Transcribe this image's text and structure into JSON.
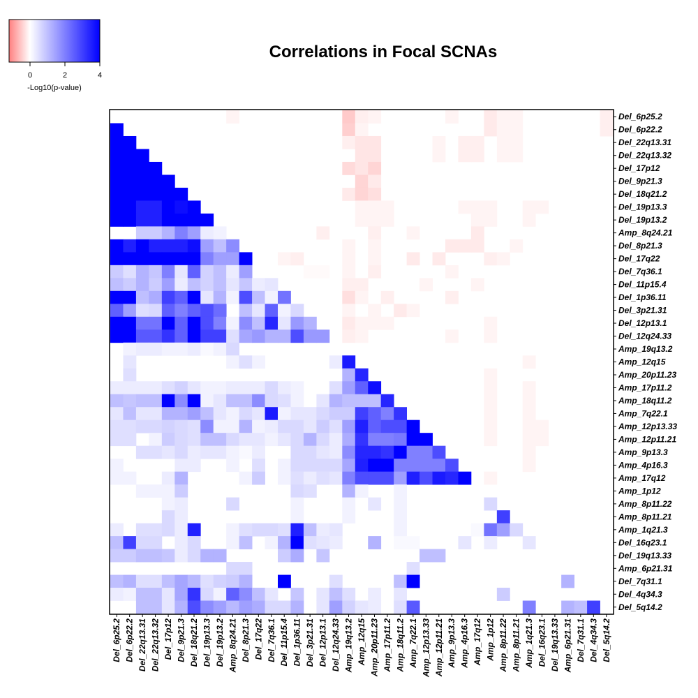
{
  "chart_data": {
    "type": "heatmap",
    "title": "Correlations in Focal SCNAs",
    "colorbar": {
      "label": "-Log10(p-value)",
      "ticks": [
        0,
        2,
        4
      ],
      "range": [
        -1.2,
        4
      ],
      "colors": {
        "negative": "#ff8080",
        "zero": "#ffffff",
        "positive": "#0000ff"
      }
    },
    "labels": [
      "Del_6p25.2",
      "Del_6p22.2",
      "Del_22q13.31",
      "Del_22q13.32",
      "Del_17p12",
      "Del_9p21.3",
      "Del_18q21.2",
      "Del_19p13.3",
      "Del_19p13.2",
      "Amp_8q24.21",
      "Del_8p21.3",
      "Del_17q22",
      "Del_7q36.1",
      "Del_11p15.4",
      "Del_1p36.11",
      "Del_3p21.31",
      "Del_12p13.1",
      "Del_12q24.33",
      "Amp_19q13.2",
      "Amp_12q15",
      "Amp_20p11.23",
      "Amp_17p11.2",
      "Amp_18q11.2",
      "Amp_7q22.1",
      "Amp_12p13.33",
      "Amp_12p11.21",
      "Amp_9p13.3",
      "Amp_4p16.3",
      "Amp_17q12",
      "Amp_1p12",
      "Amp_8p11.22",
      "Amp_8p11.21",
      "Amp_1q21.3",
      "Del_16q23.1",
      "Del_19q13.33",
      "Amp_6p21.31",
      "Del_7q31.1",
      "Del_4q34.3",
      "Del_5q14.2"
    ],
    "x_labels": [
      "Del_6p25.2",
      "Del_6p22.2",
      "Del_22q13.31",
      "Del_22q13.32",
      "Del_17p12",
      "Del_9p21.3",
      "Del_18q21.2",
      "Del_19p13.3",
      "Del_19p13.2",
      "Amp_8q24.21",
      "Del_8p21.3",
      "Del_17q22",
      "Del_7q36.1",
      "Del_11p15.4",
      "Del_1p36.11",
      "Del_3p21.31",
      "Del_12p13.1",
      "Del_12q24.33",
      "Amp_19q13.2",
      "Amp_12q15",
      "Amp_20p11.23",
      "Amp_17p11.2",
      "Amp_18q11.2",
      "Amp_7q22.1",
      "Amp_12p13.33",
      "Amp_12p11.21",
      "Amp_9p13.3",
      "Amp_4p16.3",
      "Amp_17q12",
      "Amp_1p12",
      "Amp_8p11.22",
      "Amp_8p11.21",
      "Amp_1q21.3",
      "Del_16q23.1",
      "Del_19q13.33",
      "Amp_6p21.31",
      "Del_7q31.1",
      "Del_4q34.3",
      "Del_5q14.2"
    ],
    "lower_triangle_positive": [
      [],
      [
        4
      ],
      [
        4,
        4
      ],
      [
        4,
        4,
        4
      ],
      [
        4,
        4,
        4,
        4
      ],
      [
        4,
        4,
        4,
        4,
        4
      ],
      [
        4,
        4,
        4,
        4,
        4,
        4
      ],
      [
        4,
        4,
        3.5,
        3.5,
        4,
        3.8,
        4
      ],
      [
        4,
        4,
        3.5,
        3.5,
        4,
        4,
        4,
        4
      ],
      [
        0,
        0,
        0.8,
        0.8,
        1.2,
        2,
        1.5,
        0.3,
        0.2
      ],
      [
        4,
        3.5,
        4,
        3.5,
        3.5,
        3.5,
        3.8,
        1.5,
        1,
        1.8
      ],
      [
        4,
        4,
        4,
        4,
        4,
        4,
        4,
        2,
        1.5,
        1.5,
        4
      ],
      [
        0.8,
        0.5,
        1.2,
        0.9,
        2,
        0.4,
        2.5,
        0.7,
        1,
        0.3,
        1.5,
        0
      ],
      [
        1,
        0.8,
        1.2,
        0.8,
        1.5,
        0.3,
        1,
        0.7,
        1,
        0.4,
        0.9,
        0.3,
        0.4
      ],
      [
        4,
        4,
        1,
        1.3,
        3,
        2.5,
        4,
        0.4,
        1.2,
        0.2,
        2.8,
        1,
        0.2,
        2.2
      ],
      [
        2.5,
        1.5,
        0.5,
        0.6,
        2.5,
        2,
        2.5,
        2.8,
        2.3,
        0,
        1,
        0.4,
        2.5,
        0.2,
        0.6
      ],
      [
        4,
        4,
        2.2,
        2.2,
        4,
        2.5,
        4,
        2.8,
        2,
        0.2,
        1.8,
        1,
        3.4,
        0.4,
        1.6,
        1.2
      ],
      [
        4,
        4,
        2.6,
        2.6,
        3.2,
        2.5,
        4,
        3,
        3,
        0.5,
        1.4,
        1.6,
        1.2,
        1.2,
        2.8,
        1.6,
        1.6
      ],
      [
        0,
        0.2,
        0.3,
        0.3,
        0.2,
        0.2,
        0.3,
        0.1,
        0.2,
        0.6,
        0,
        0,
        0,
        0,
        0,
        0,
        0,
        0
      ],
      [
        0,
        0.4,
        0,
        0,
        0,
        0,
        0,
        0,
        0,
        0.2,
        0.5,
        0.2,
        0,
        0,
        0,
        0,
        0,
        0.3,
        3.6
      ],
      [
        0,
        0.5,
        0,
        0,
        0,
        0,
        0,
        0,
        0,
        0,
        0,
        0,
        0,
        0,
        0,
        0,
        0,
        0,
        1.2,
        3.4
      ],
      [
        0.3,
        0.3,
        0.3,
        0.3,
        0.5,
        0.7,
        0.4,
        0.2,
        0.2,
        0.3,
        0.3,
        0.3,
        0.6,
        0.3,
        0.2,
        0,
        0,
        0.5,
        1.5,
        2.5,
        3.8
      ],
      [
        1,
        0.9,
        1,
        1,
        4,
        1.8,
        4,
        0.2,
        0.4,
        1,
        1,
        1.8,
        0.6,
        0.5,
        0.2,
        0,
        0.4,
        1.2,
        1,
        1,
        1,
        3.4
      ],
      [
        0.4,
        1,
        0.4,
        0.4,
        1.2,
        1.2,
        1.5,
        1,
        0.4,
        0.2,
        0.6,
        0.4,
        3.6,
        0.2,
        0.4,
        0.4,
        0.6,
        0.8,
        0.8,
        3,
        2.5,
        2,
        3.2
      ],
      [
        0.5,
        0.5,
        0.6,
        0.6,
        0.7,
        0.6,
        0.5,
        1.8,
        0.2,
        0.2,
        1.2,
        0.2,
        0.3,
        0.6,
        0.6,
        0.4,
        0.8,
        0.5,
        1.5,
        3.5,
        2.5,
        2.8,
        2.8,
        4
      ],
      [
        0.5,
        0.5,
        0,
        0.2,
        0.8,
        0.6,
        0.5,
        1,
        1,
        0.6,
        0.4,
        0.4,
        0.2,
        0.4,
        0.6,
        1.2,
        0.6,
        0.3,
        1.3,
        3.2,
        2,
        2,
        2.1,
        4,
        4
      ],
      [
        0,
        0,
        0.5,
        0.5,
        0.4,
        0.6,
        0.3,
        0.4,
        0.4,
        0.2,
        0.1,
        0.3,
        0,
        0,
        0.6,
        0.6,
        0.4,
        0.3,
        1.8,
        3.4,
        3.4,
        3.2,
        4,
        2,
        2,
        2.8
      ],
      [
        0.2,
        0,
        0,
        0,
        0,
        0.3,
        0.3,
        0,
        0,
        0.2,
        0,
        0.5,
        0,
        0.2,
        0.6,
        0.6,
        0.6,
        0.6,
        1.4,
        3.5,
        4,
        4,
        2,
        2,
        2,
        2,
        2.8
      ],
      [
        0.2,
        0.2,
        0,
        0,
        0.3,
        1.2,
        0,
        0,
        0,
        0,
        0.2,
        0.8,
        0,
        0.2,
        0.5,
        0.3,
        0.5,
        0.4,
        2,
        2.8,
        2.8,
        2.8,
        1.5,
        3.5,
        2.8,
        3.6,
        3.4,
        4
      ],
      [
        0,
        0,
        0.2,
        0.2,
        0.2,
        0.8,
        0,
        0,
        0,
        0,
        0,
        0,
        0,
        0,
        0.6,
        0.5,
        0,
        0,
        1.2,
        0.2,
        0,
        0,
        0.2,
        0,
        0,
        0,
        0,
        0,
        0
      ],
      [
        0,
        0,
        0,
        0,
        0.2,
        0.3,
        0,
        0,
        0,
        0.6,
        0,
        0,
        0,
        0,
        0.2,
        0,
        0,
        0,
        0.2,
        0,
        0.4,
        0,
        0.2,
        0,
        0,
        0,
        0,
        0,
        0,
        0.6
      ],
      [
        0,
        0,
        0,
        0,
        0.6,
        0.3,
        0,
        0,
        0,
        0,
        0,
        0,
        0,
        0,
        0.2,
        0,
        0,
        0,
        0.2,
        0,
        0,
        0,
        0.2,
        0,
        0,
        0,
        0,
        0,
        0,
        0,
        3
      ],
      [
        0.3,
        0,
        0.5,
        0.5,
        0.6,
        0.3,
        3.5,
        0,
        0,
        0.2,
        0.5,
        0.6,
        0.6,
        0.5,
        3.5,
        1,
        0.3,
        0.4,
        0,
        0,
        0,
        0,
        0.2,
        0,
        0,
        0,
        0,
        0,
        0.1,
        2.2,
        1.5,
        0.6
      ],
      [
        1,
        3,
        0.6,
        0.6,
        0,
        0.3,
        0.6,
        0,
        0,
        0.2,
        1,
        0,
        0.2,
        1.2,
        4,
        0.5,
        0.4,
        0.3,
        0,
        0,
        1.2,
        0,
        0.1,
        0.1,
        0,
        0,
        0,
        0.4,
        0,
        0.3,
        0,
        0,
        0.4
      ],
      [
        0.8,
        0.8,
        1,
        1,
        0.9,
        0.3,
        0.6,
        1.2,
        1.2,
        0,
        0,
        0,
        0,
        0.8,
        1.3,
        0,
        0.9,
        0,
        0,
        0,
        0,
        0,
        0,
        0,
        1,
        1,
        0,
        0,
        0,
        0,
        0,
        0,
        0,
        0
      ],
      [
        0,
        0,
        0,
        0,
        0,
        0,
        0,
        0,
        0,
        0.6,
        0.6,
        0,
        0,
        0,
        0,
        0,
        0,
        0,
        0,
        0,
        0,
        0,
        0,
        0.5,
        0,
        0,
        0,
        0,
        0,
        0,
        0,
        0,
        0,
        0,
        0
      ],
      [
        1,
        1.2,
        0.5,
        0.5,
        1,
        1.4,
        1.1,
        0.5,
        0.7,
        0.8,
        1.2,
        0,
        0,
        4,
        0,
        0,
        0,
        0.5,
        0,
        0,
        0,
        0,
        1,
        4,
        0,
        0,
        0,
        0,
        0,
        0,
        0,
        0,
        0,
        0,
        0,
        1.2
      ],
      [
        0.3,
        0.2,
        1,
        1,
        0.4,
        1.4,
        3.2,
        0.6,
        0.2,
        2.5,
        1.8,
        1,
        0.4,
        0,
        0.9,
        0,
        0.4,
        1,
        0.5,
        0,
        0.3,
        0,
        0.4,
        0,
        0,
        0,
        0,
        0,
        0,
        0,
        0.8,
        0,
        0,
        0,
        0,
        0,
        0
      ],
      [
        0,
        0,
        1,
        1,
        0.4,
        1.2,
        2.8,
        1.8,
        1.5,
        1.1,
        1.5,
        1.3,
        0.6,
        0.6,
        1.2,
        0,
        0.4,
        1.5,
        0.7,
        0.4,
        0.3,
        0,
        0.5,
        2.6,
        0,
        0,
        0,
        0,
        0,
        0,
        0,
        0,
        2,
        0,
        0,
        1.2,
        1,
        3
      ]
    ],
    "upper_triangle_negative": [
      {
        "row": 0,
        "col": 9,
        "v": -0.1
      },
      {
        "row": 0,
        "col": 18,
        "v": -0.5
      },
      {
        "row": 0,
        "col": 19,
        "v": -0.15
      },
      {
        "row": 0,
        "col": 20,
        "v": -0.1
      },
      {
        "row": 0,
        "col": 26,
        "v": -0.1
      },
      {
        "row": 0,
        "col": 29,
        "v": -0.2
      },
      {
        "row": 0,
        "col": 30,
        "v": -0.1
      },
      {
        "row": 0,
        "col": 31,
        "v": -0.1
      },
      {
        "row": 0,
        "col": 38,
        "v": -0.15
      },
      {
        "row": 1,
        "col": 18,
        "v": -0.45
      },
      {
        "row": 1,
        "col": 19,
        "v": -0.1
      },
      {
        "row": 1,
        "col": 29,
        "v": -0.2
      },
      {
        "row": 1,
        "col": 30,
        "v": -0.1
      },
      {
        "row": 1,
        "col": 31,
        "v": -0.1
      },
      {
        "row": 1,
        "col": 38,
        "v": -0.15
      },
      {
        "row": 2,
        "col": 18,
        "v": -0.15
      },
      {
        "row": 2,
        "col": 19,
        "v": -0.25
      },
      {
        "row": 2,
        "col": 20,
        "v": -0.25
      },
      {
        "row": 2,
        "col": 25,
        "v": -0.1
      },
      {
        "row": 2,
        "col": 27,
        "v": -0.15
      },
      {
        "row": 2,
        "col": 28,
        "v": -0.15
      },
      {
        "row": 2,
        "col": 30,
        "v": -0.1
      },
      {
        "row": 2,
        "col": 31,
        "v": -0.1
      },
      {
        "row": 3,
        "col": 19,
        "v": -0.25
      },
      {
        "row": 3,
        "col": 20,
        "v": -0.25
      },
      {
        "row": 3,
        "col": 25,
        "v": -0.1
      },
      {
        "row": 3,
        "col": 27,
        "v": -0.15
      },
      {
        "row": 3,
        "col": 28,
        "v": -0.15
      },
      {
        "row": 3,
        "col": 30,
        "v": -0.1
      },
      {
        "row": 3,
        "col": 31,
        "v": -0.1
      },
      {
        "row": 4,
        "col": 18,
        "v": -0.35
      },
      {
        "row": 4,
        "col": 19,
        "v": -0.25
      },
      {
        "row": 4,
        "col": 20,
        "v": -0.4
      },
      {
        "row": 5,
        "col": 19,
        "v": -0.4
      },
      {
        "row": 5,
        "col": 20,
        "v": -0.2
      },
      {
        "row": 6,
        "col": 18,
        "v": -0.2
      },
      {
        "row": 6,
        "col": 19,
        "v": -0.4
      },
      {
        "row": 6,
        "col": 20,
        "v": -0.3
      },
      {
        "row": 7,
        "col": 19,
        "v": -0.1
      },
      {
        "row": 7,
        "col": 20,
        "v": -0.1
      },
      {
        "row": 7,
        "col": 21,
        "v": -0.1
      },
      {
        "row": 7,
        "col": 27,
        "v": -0.1
      },
      {
        "row": 7,
        "col": 28,
        "v": -0.1
      },
      {
        "row": 7,
        "col": 29,
        "v": -0.1
      },
      {
        "row": 7,
        "col": 32,
        "v": -0.1
      },
      {
        "row": 7,
        "col": 33,
        "v": -0.1
      },
      {
        "row": 8,
        "col": 19,
        "v": -0.1
      },
      {
        "row": 8,
        "col": 20,
        "v": -0.1
      },
      {
        "row": 8,
        "col": 21,
        "v": -0.1
      },
      {
        "row": 8,
        "col": 28,
        "v": -0.1
      },
      {
        "row": 8,
        "col": 29,
        "v": -0.1
      },
      {
        "row": 8,
        "col": 32,
        "v": -0.1
      },
      {
        "row": 9,
        "col": 16,
        "v": -0.15
      },
      {
        "row": 9,
        "col": 20,
        "v": -0.15
      },
      {
        "row": 9,
        "col": 23,
        "v": -0.1
      },
      {
        "row": 9,
        "col": 28,
        "v": -0.2
      },
      {
        "row": 10,
        "col": 18,
        "v": -0.1
      },
      {
        "row": 10,
        "col": 20,
        "v": -0.1
      },
      {
        "row": 10,
        "col": 26,
        "v": -0.2
      },
      {
        "row": 10,
        "col": 27,
        "v": -0.2
      },
      {
        "row": 10,
        "col": 28,
        "v": -0.2
      },
      {
        "row": 10,
        "col": 31,
        "v": -0.1
      },
      {
        "row": 11,
        "col": 13,
        "v": -0.1
      },
      {
        "row": 11,
        "col": 14,
        "v": -0.15
      },
      {
        "row": 11,
        "col": 18,
        "v": -0.1
      },
      {
        "row": 11,
        "col": 20,
        "v": -0.1
      },
      {
        "row": 11,
        "col": 23,
        "v": -0.2
      },
      {
        "row": 11,
        "col": 25,
        "v": -0.2
      },
      {
        "row": 11,
        "col": 29,
        "v": -0.15
      },
      {
        "row": 11,
        "col": 30,
        "v": -0.1
      },
      {
        "row": 12,
        "col": 15,
        "v": -0.05
      },
      {
        "row": 12,
        "col": 16,
        "v": -0.05
      },
      {
        "row": 12,
        "col": 18,
        "v": -0.1
      },
      {
        "row": 12,
        "col": 20,
        "v": -0.15
      },
      {
        "row": 12,
        "col": 26,
        "v": -0.1
      },
      {
        "row": 13,
        "col": 18,
        "v": -0.15
      },
      {
        "row": 13,
        "col": 19,
        "v": -0.15
      },
      {
        "row": 13,
        "col": 24,
        "v": -0.1
      },
      {
        "row": 13,
        "col": 28,
        "v": -0.1
      },
      {
        "row": 14,
        "col": 18,
        "v": -0.3
      },
      {
        "row": 14,
        "col": 19,
        "v": -0.1
      },
      {
        "row": 14,
        "col": 21,
        "v": -0.15
      },
      {
        "row": 14,
        "col": 26,
        "v": -0.15
      },
      {
        "row": 15,
        "col": 18,
        "v": -0.1
      },
      {
        "row": 15,
        "col": 20,
        "v": -0.1
      },
      {
        "row": 15,
        "col": 22,
        "v": -0.2
      },
      {
        "row": 15,
        "col": 23,
        "v": -0.1
      },
      {
        "row": 16,
        "col": 18,
        "v": -0.2
      },
      {
        "row": 16,
        "col": 19,
        "v": -0.1
      },
      {
        "row": 16,
        "col": 20,
        "v": -0.1
      },
      {
        "row": 16,
        "col": 21,
        "v": -0.1
      },
      {
        "row": 16,
        "col": 29,
        "v": -0.1
      },
      {
        "row": 17,
        "col": 18,
        "v": -0.15
      },
      {
        "row": 17,
        "col": 19,
        "v": -0.1
      },
      {
        "row": 17,
        "col": 26,
        "v": -0.1
      },
      {
        "row": 17,
        "col": 29,
        "v": -0.1
      },
      {
        "row": 19,
        "col": 32,
        "v": -0.1
      },
      {
        "row": 20,
        "col": 29,
        "v": -0.1
      },
      {
        "row": 21,
        "col": 29,
        "v": -0.1
      },
      {
        "row": 21,
        "col": 32,
        "v": -0.1
      },
      {
        "row": 22,
        "col": 29,
        "v": -0.1
      },
      {
        "row": 22,
        "col": 32,
        "v": -0.1
      },
      {
        "row": 23,
        "col": 29,
        "v": -0.1
      },
      {
        "row": 23,
        "col": 32,
        "v": -0.1
      },
      {
        "row": 24,
        "col": 29,
        "v": -0.1
      },
      {
        "row": 24,
        "col": 32,
        "v": -0.1
      },
      {
        "row": 24,
        "col": 33,
        "v": -0.1
      },
      {
        "row": 25,
        "col": 29,
        "v": -0.1
      },
      {
        "row": 25,
        "col": 32,
        "v": -0.1
      },
      {
        "row": 25,
        "col": 33,
        "v": -0.1
      },
      {
        "row": 26,
        "col": 32,
        "v": -0.1
      },
      {
        "row": 27,
        "col": 32,
        "v": -0.1
      },
      {
        "row": 28,
        "col": 29,
        "v": -0.1
      }
    ]
  }
}
